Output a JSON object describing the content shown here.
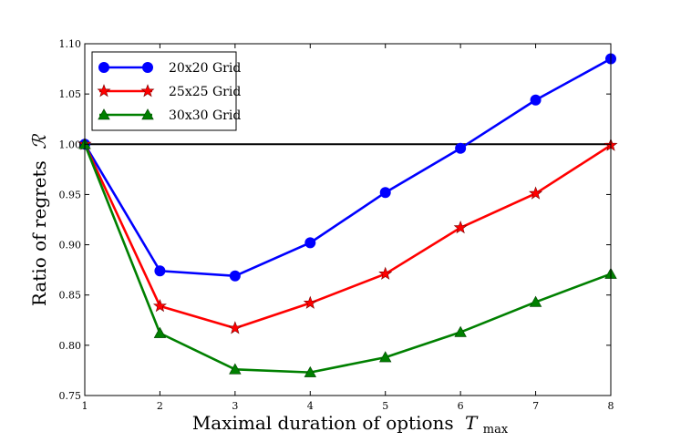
{
  "chart_data": {
    "type": "line",
    "title": "",
    "xlabel": "Maximal duration of options",
    "xlabel_math": {
      "base": "T",
      "subscript": "max"
    },
    "ylabel": "Ratio of regrets",
    "ylabel_math": "ℛ",
    "x": [
      1,
      2,
      3,
      4,
      5,
      6,
      7,
      8
    ],
    "xlim": [
      1,
      8
    ],
    "ylim": [
      0.75,
      1.1
    ],
    "xticks": [
      "1",
      "2",
      "3",
      "4",
      "5",
      "6",
      "7",
      "8"
    ],
    "yticks": [
      "0.75",
      "0.80",
      "0.85",
      "0.90",
      "0.95",
      "1.00",
      "1.05",
      "1.10"
    ],
    "ytick_values": [
      0.75,
      0.8,
      0.85,
      0.9,
      0.95,
      1.0,
      1.05,
      1.1
    ],
    "grid": false,
    "legend_position": "top-left",
    "reference_line": {
      "y": 1.0,
      "color": "#000000"
    },
    "series": [
      {
        "name": "20x20 Grid",
        "color": "#0000ff",
        "marker": "circle",
        "values": [
          1.0,
          0.874,
          0.869,
          0.902,
          0.952,
          0.996,
          1.044,
          1.085
        ]
      },
      {
        "name": "25x25 Grid",
        "color": "#ff0000",
        "marker": "star",
        "values": [
          1.0,
          0.839,
          0.817,
          0.842,
          0.871,
          0.917,
          0.951,
          0.999
        ]
      },
      {
        "name": "30x30 Grid",
        "color": "#008000",
        "marker": "triangle",
        "values": [
          1.0,
          0.812,
          0.776,
          0.773,
          0.788,
          0.813,
          0.843,
          0.871
        ]
      }
    ]
  }
}
